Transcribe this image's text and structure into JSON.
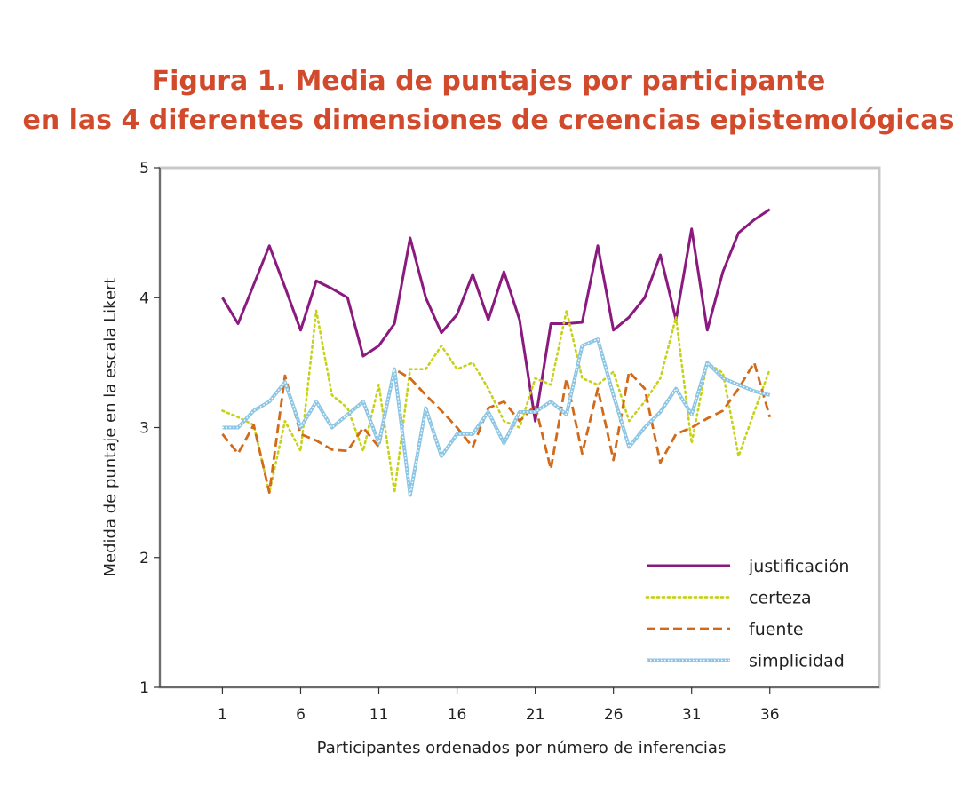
{
  "chart_data": {
    "type": "line",
    "title_line1": "Figura 1. Media de puntajes por participante",
    "title_line2": "en las 4 diferentes dimensiones de creencias epistemológicas",
    "xlabel": "Participantes ordenados por número de inferencias",
    "ylabel": "Medida de puntaje en la escala Likert",
    "xlim": [
      -3,
      43
    ],
    "ylim": [
      1,
      5
    ],
    "xticks": [
      1,
      6,
      11,
      16,
      21,
      26,
      31,
      36
    ],
    "yticks": [
      1,
      2,
      3,
      4,
      5
    ],
    "grid": false,
    "legend_position": "bottom-right",
    "x": [
      1,
      2,
      3,
      4,
      5,
      6,
      7,
      8,
      9,
      10,
      11,
      12,
      13,
      14,
      15,
      16,
      17,
      18,
      19,
      20,
      21,
      22,
      23,
      24,
      25,
      26,
      27,
      28,
      29,
      30,
      31,
      32,
      33,
      34,
      35,
      36
    ],
    "series": [
      {
        "name": "justificación",
        "color": "#8b1a7e",
        "dash": "solid",
        "values": [
          4.0,
          3.8,
          4.1,
          4.4,
          4.08,
          3.75,
          4.13,
          4.07,
          4.0,
          3.55,
          3.63,
          3.8,
          4.46,
          4.0,
          3.73,
          3.87,
          4.18,
          3.83,
          4.2,
          3.83,
          3.05,
          3.8,
          3.8,
          3.81,
          4.4,
          3.75,
          3.85,
          4.0,
          4.33,
          3.83,
          4.53,
          3.75,
          4.2,
          4.5,
          4.6,
          4.68
        ]
      },
      {
        "name": "certeza",
        "color": "#c6d21a",
        "dash": "dotted",
        "values": [
          3.13,
          3.08,
          3.02,
          2.5,
          3.05,
          2.82,
          3.9,
          3.25,
          3.15,
          2.82,
          3.33,
          2.5,
          3.45,
          3.45,
          3.63,
          3.45,
          3.5,
          3.3,
          3.05,
          3.0,
          3.38,
          3.33,
          3.9,
          3.38,
          3.33,
          3.43,
          3.05,
          3.2,
          3.38,
          3.85,
          2.88,
          3.5,
          3.42,
          2.78,
          3.12,
          3.45
        ]
      },
      {
        "name": "fuente",
        "color": "#d16a1a",
        "dash": "dashed",
        "values": [
          2.95,
          2.8,
          3.02,
          2.5,
          3.4,
          2.95,
          2.9,
          2.83,
          2.82,
          3.0,
          2.85,
          3.45,
          3.38,
          3.25,
          3.13,
          3.0,
          2.85,
          3.15,
          3.2,
          3.05,
          3.17,
          2.68,
          3.38,
          2.8,
          3.3,
          2.75,
          3.43,
          3.3,
          2.73,
          2.95,
          3.0,
          3.07,
          3.13,
          3.3,
          3.5,
          3.08
        ]
      },
      {
        "name": "simplicidad",
        "color": "#8cc6e4",
        "dash": "dense",
        "values": [
          3.0,
          3.0,
          3.13,
          3.2,
          3.35,
          3.0,
          3.2,
          3.0,
          3.1,
          3.2,
          2.88,
          3.45,
          2.48,
          3.15,
          2.78,
          2.95,
          2.95,
          3.12,
          2.88,
          3.12,
          3.12,
          3.2,
          3.1,
          3.63,
          3.68,
          3.25,
          2.85,
          3.0,
          3.12,
          3.3,
          3.1,
          3.5,
          3.38,
          3.33,
          3.28,
          3.25
        ]
      }
    ]
  }
}
